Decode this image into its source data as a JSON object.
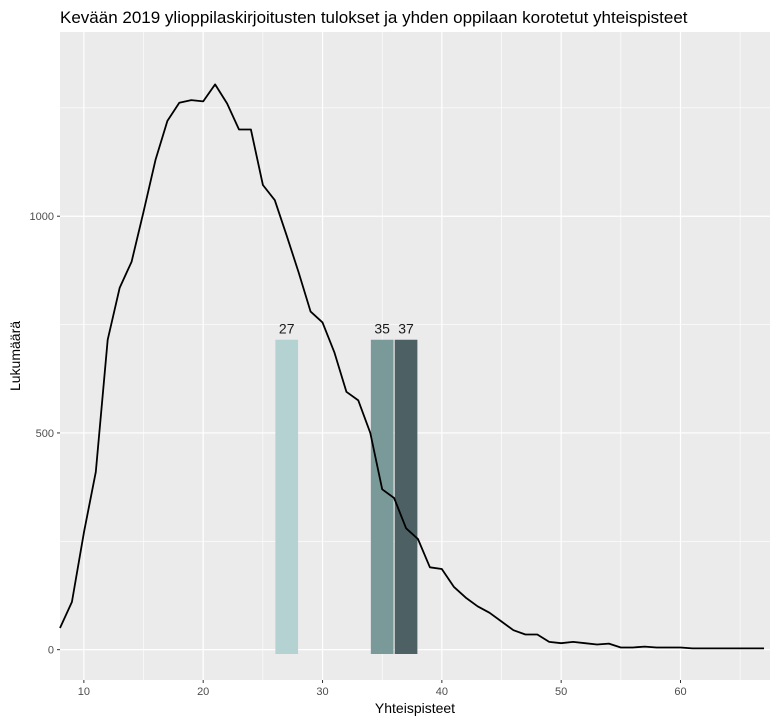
{
  "chart_data": {
    "type": "line",
    "title": "Kevään 2019 ylioppilaskirjoitusten tulokset ja yhden oppilaan korotetut yhteispisteet",
    "xlabel": "Yhteispisteet",
    "ylabel": "Lukumäärä",
    "xlim": [
      8,
      67.5
    ],
    "ylim": [
      -70,
      1425
    ],
    "x_ticks": [
      10,
      20,
      30,
      40,
      50,
      60
    ],
    "y_ticks": [
      0,
      500,
      1000
    ],
    "x_tick_labels": [
      "10",
      "20",
      "30",
      "40",
      "50",
      "60"
    ],
    "y_tick_labels": [
      "0",
      "500",
      "1000"
    ],
    "grid": true,
    "legend": "none",
    "panel_background": "#ebebeb",
    "grid_color": "#ffffff",
    "line_color": "#000000",
    "series": [
      {
        "x": [
          8,
          9,
          10,
          11,
          12,
          13,
          14,
          15,
          16,
          17,
          18,
          19,
          20,
          21,
          22,
          23,
          24,
          25,
          26,
          27,
          28,
          29,
          30,
          31,
          32,
          33,
          34,
          35,
          36,
          37,
          38,
          39,
          40,
          41,
          42,
          43,
          44,
          45,
          46,
          47,
          48,
          49,
          50,
          51,
          52,
          53,
          54,
          55,
          56,
          57,
          58,
          59,
          60,
          61,
          62,
          63,
          64,
          65,
          66,
          67
        ],
        "y": [
          50,
          110,
          270,
          410,
          715,
          835,
          895,
          1010,
          1130,
          1220,
          1262,
          1268,
          1265,
          1304,
          1260,
          1200,
          1200,
          1072,
          1037,
          955,
          870,
          780,
          755,
          685,
          595,
          575,
          500,
          370,
          350,
          280,
          255,
          190,
          186,
          145,
          120,
          100,
          85,
          65,
          45,
          35,
          35,
          18,
          15,
          18,
          15,
          12,
          14,
          5,
          5,
          7,
          5,
          5,
          5,
          3,
          3,
          3,
          3,
          3,
          3,
          3
        ]
      }
    ],
    "bars": [
      {
        "label": "27",
        "x": 27,
        "value": 715,
        "color": "#b4d2d2"
      },
      {
        "label": "35",
        "x": 35,
        "value": 715,
        "color": "#7a9999"
      },
      {
        "label": "37",
        "x": 37,
        "value": 715,
        "color": "#4d6063"
      }
    ],
    "bar_bottom": -10
  }
}
